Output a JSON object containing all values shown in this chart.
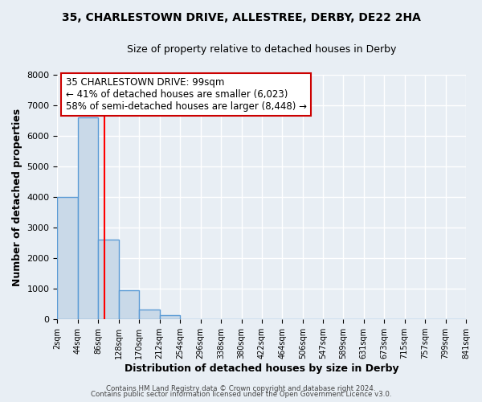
{
  "title": "35, CHARLESTOWN DRIVE, ALLESTREE, DERBY, DE22 2HA",
  "subtitle": "Size of property relative to detached houses in Derby",
  "xlabel": "Distribution of detached houses by size in Derby",
  "ylabel": "Number of detached properties",
  "bin_edges": [
    2,
    44,
    86,
    128,
    170,
    212,
    254,
    296,
    338,
    380,
    422,
    464,
    506,
    547,
    589,
    631,
    673,
    715,
    757,
    799,
    841
  ],
  "bin_counts": [
    4000,
    6600,
    2600,
    950,
    320,
    130,
    0,
    0,
    0,
    0,
    0,
    0,
    0,
    0,
    0,
    0,
    0,
    0,
    0,
    0
  ],
  "bar_facecolor": "#c9d9e8",
  "bar_edgecolor": "#5b9bd5",
  "bar_linewidth": 1.0,
  "vline_x": 99,
  "vline_color": "red",
  "vline_linewidth": 1.5,
  "ylim": [
    0,
    8000
  ],
  "yticks": [
    0,
    1000,
    2000,
    3000,
    4000,
    5000,
    6000,
    7000,
    8000
  ],
  "annotation_text": "35 CHARLESTOWN DRIVE: 99sqm\n← 41% of detached houses are smaller (6,023)\n58% of semi-detached houses are larger (8,448) →",
  "annotation_box_edgecolor": "#cc0000",
  "annotation_box_facecolor": "white",
  "footer_line1": "Contains HM Land Registry data © Crown copyright and database right 2024.",
  "footer_line2": "Contains public sector information licensed under the Open Government Licence v3.0.",
  "background_color": "#e8eef4",
  "plot_bg_color": "#e8eef4",
  "grid_color": "#ffffff",
  "tick_labels": [
    "2sqm",
    "44sqm",
    "86sqm",
    "128sqm",
    "170sqm",
    "212sqm",
    "254sqm",
    "296sqm",
    "338sqm",
    "380sqm",
    "422sqm",
    "464sqm",
    "506sqm",
    "547sqm",
    "589sqm",
    "631sqm",
    "673sqm",
    "715sqm",
    "757sqm",
    "799sqm",
    "841sqm"
  ]
}
